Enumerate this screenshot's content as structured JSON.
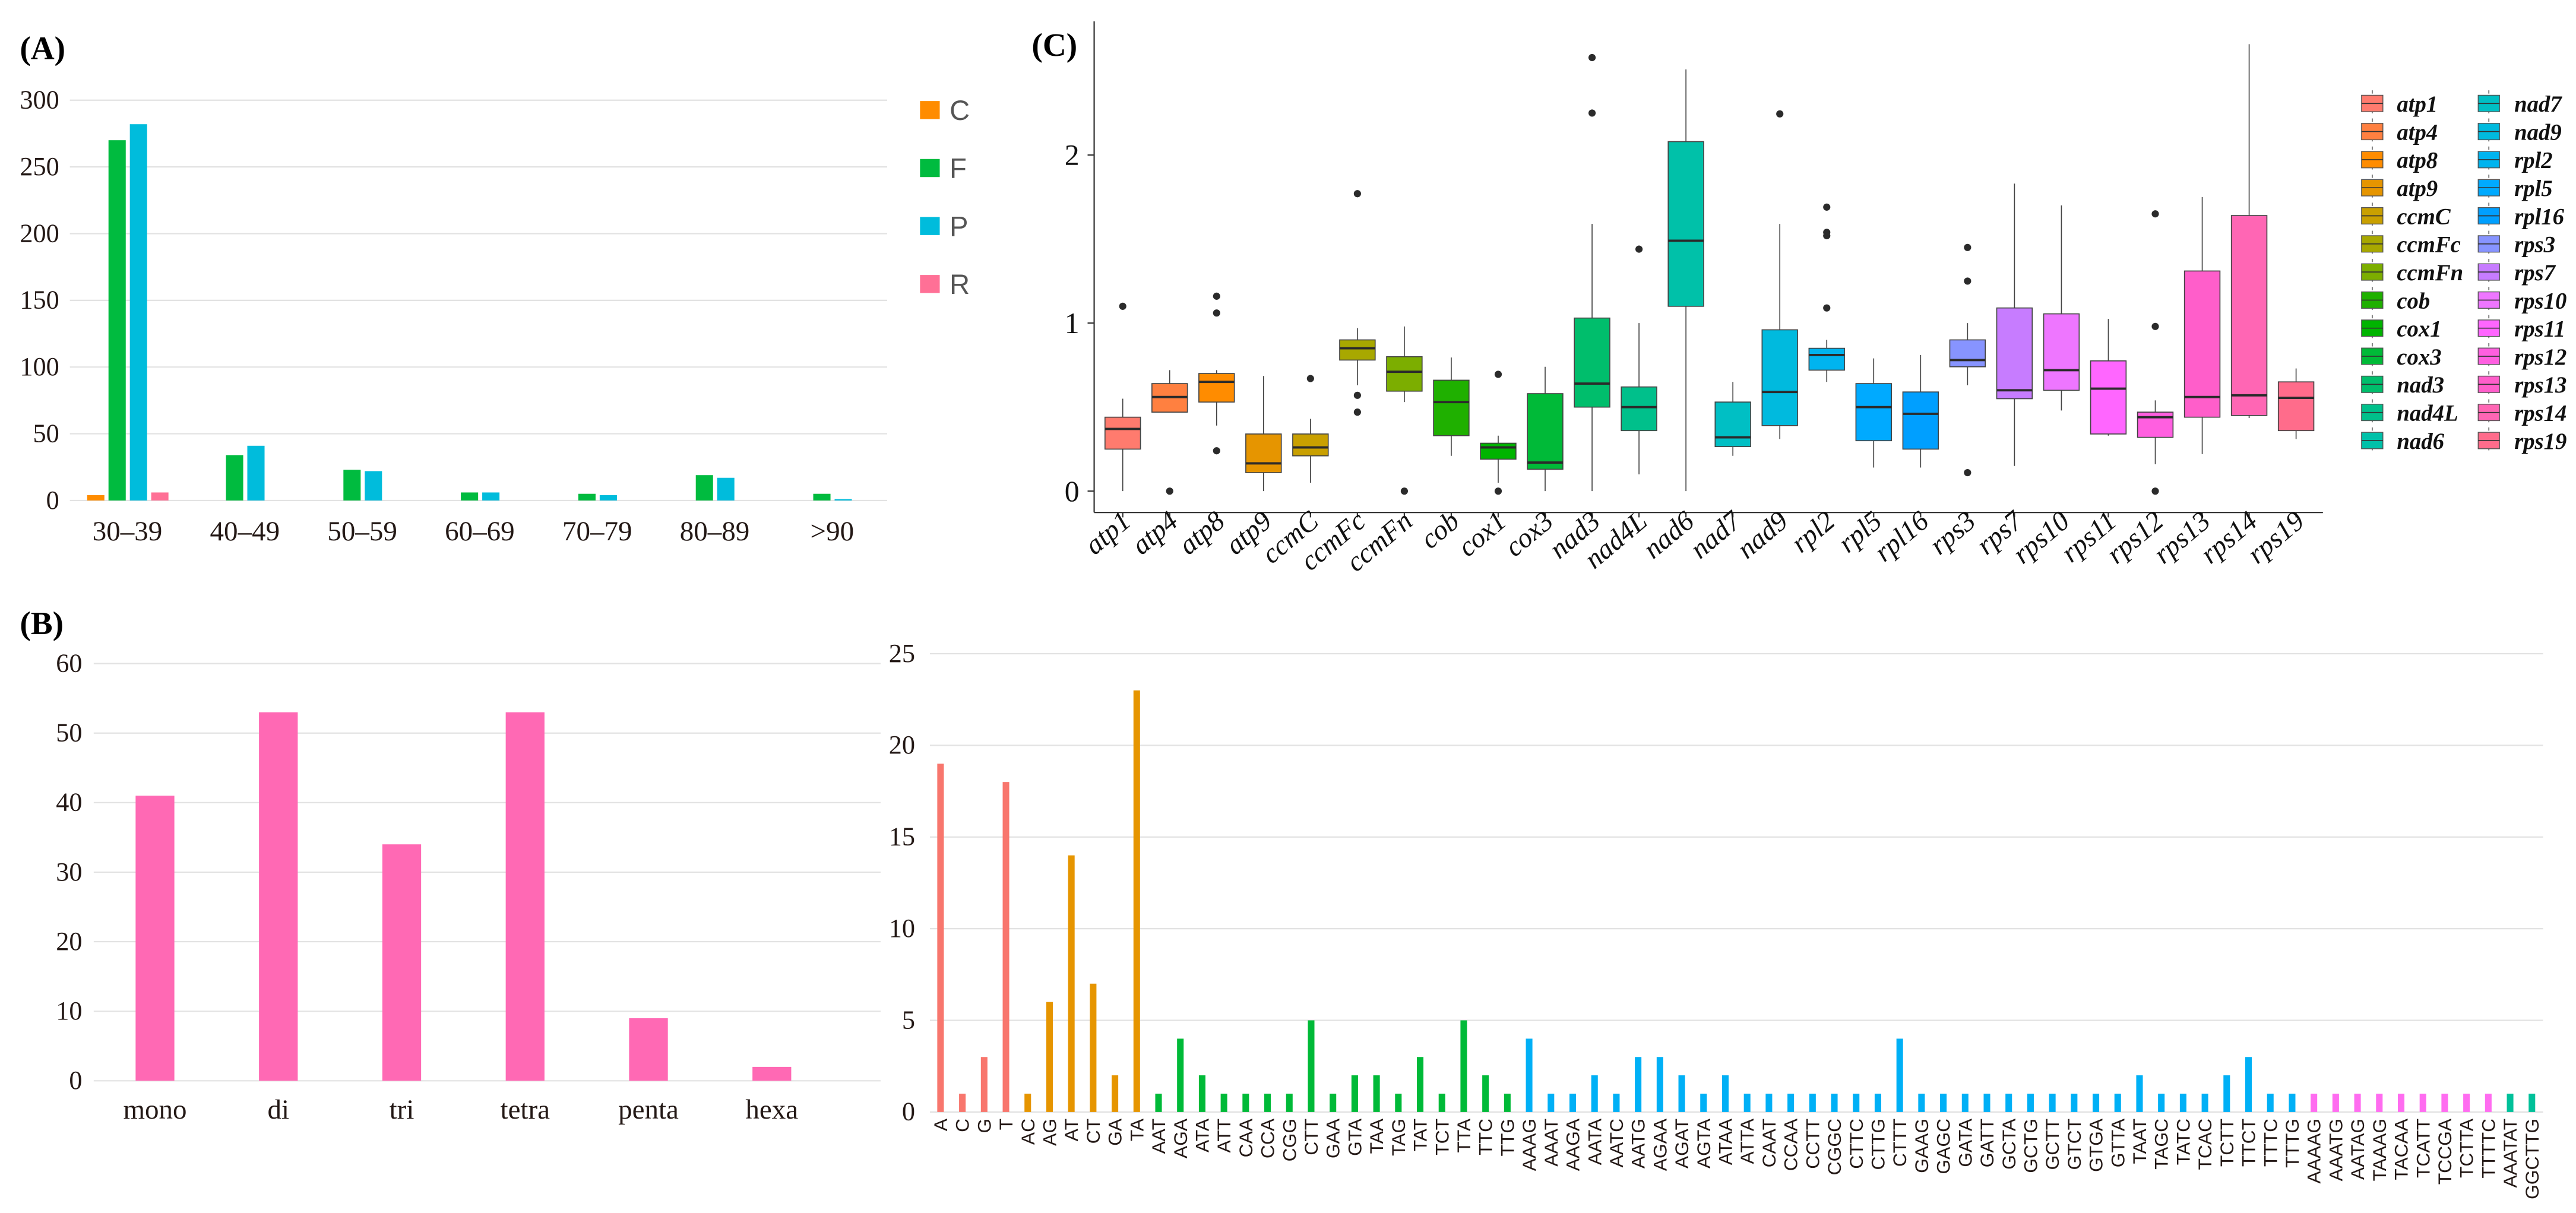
{
  "chart_data": [
    {
      "panel": "(A)",
      "type": "bar",
      "categories": [
        "30–39",
        "40–49",
        "50–59",
        "60–69",
        "70–79",
        "80–89",
        ">90"
      ],
      "series": [
        {
          "name": "C",
          "color": "#FF8C00",
          "values": [
            4,
            0,
            0,
            0,
            0,
            0,
            0
          ]
        },
        {
          "name": "F",
          "color": "#00BB3F",
          "values": [
            270,
            34,
            23,
            6,
            5,
            19,
            5
          ]
        },
        {
          "name": "P",
          "color": "#00BCDC",
          "values": [
            282,
            41,
            22,
            6,
            4,
            17,
            1
          ]
        },
        {
          "name": "R",
          "color": "#FF7096",
          "values": [
            6,
            0,
            0,
            0,
            0,
            0,
            0
          ]
        }
      ],
      "yticks": [
        "0",
        "50",
        "100",
        "150",
        "200",
        "250",
        "300"
      ],
      "ylim": [
        0,
        300
      ],
      "grid": true,
      "legend_placement": "right"
    },
    {
      "panel": "(B)",
      "type": "bar",
      "categories": [
        "mono",
        "di",
        "tri",
        "tetra",
        "penta",
        "hexa"
      ],
      "values": [
        41,
        53,
        34,
        53,
        9,
        2
      ],
      "color": "#FF69B4",
      "yticks": [
        "0",
        "10",
        "20",
        "30",
        "40",
        "50",
        "60"
      ],
      "ylim": [
        0,
        60
      ],
      "grid": true
    },
    {
      "panel": "(C)",
      "type": "boxplot",
      "yticks": [
        "0",
        "1",
        "2"
      ],
      "ylim": [
        -0.13,
        2.8
      ],
      "legend_placement": "right",
      "boxes": [
        {
          "name": "atp1",
          "color": "#FF7B6E",
          "q1": 0.25,
          "median": 0.37,
          "q3": 0.44,
          "lo": 0.0,
          "hi": 0.55,
          "outliers": [
            1.1
          ]
        },
        {
          "name": "atp4",
          "color": "#FF8040",
          "q1": 0.47,
          "median": 0.56,
          "q3": 0.64,
          "lo": 0.47,
          "hi": 0.72,
          "outliers": [
            0.0
          ]
        },
        {
          "name": "atp8",
          "color": "#FF8C00",
          "q1": 0.53,
          "median": 0.65,
          "q3": 0.7,
          "lo": 0.39,
          "hi": 0.72,
          "outliers": [
            1.16,
            1.06,
            0.24
          ]
        },
        {
          "name": "atp9",
          "color": "#E69500",
          "q1": 0.11,
          "median": 0.165,
          "q3": 0.34,
          "lo": 0.0,
          "hi": 0.685,
          "outliers": []
        },
        {
          "name": "ccmC",
          "color": "#C9A000",
          "q1": 0.21,
          "median": 0.26,
          "q3": 0.34,
          "lo": 0.05,
          "hi": 0.43,
          "outliers": [
            0.67
          ]
        },
        {
          "name": "ccmFc",
          "color": "#A8A800",
          "q1": 0.78,
          "median": 0.85,
          "q3": 0.9,
          "lo": 0.63,
          "hi": 0.97,
          "outliers": [
            1.77,
            0.57,
            0.47
          ]
        },
        {
          "name": "ccmFn",
          "color": "#7CAE00",
          "q1": 0.595,
          "median": 0.71,
          "q3": 0.8,
          "lo": 0.53,
          "hi": 0.98,
          "outliers": [
            0.0
          ]
        },
        {
          "name": "cob",
          "color": "#1FB000",
          "q1": 0.33,
          "median": 0.53,
          "q3": 0.66,
          "lo": 0.21,
          "hi": 0.795,
          "outliers": []
        },
        {
          "name": "cox1",
          "color": "#00B400",
          "q1": 0.19,
          "median": 0.26,
          "q3": 0.285,
          "lo": 0.05,
          "hi": 0.33,
          "outliers": [
            0.695,
            0.0
          ]
        },
        {
          "name": "cox3",
          "color": "#00BA38",
          "q1": 0.13,
          "median": 0.17,
          "q3": 0.58,
          "lo": 0.0,
          "hi": 0.74,
          "outliers": []
        },
        {
          "name": "nad3",
          "color": "#00BE6C",
          "q1": 0.5,
          "median": 0.64,
          "q3": 1.03,
          "lo": 0.0,
          "hi": 1.59,
          "outliers": [
            2.58,
            2.25
          ]
        },
        {
          "name": "nad4L",
          "color": "#00C08B",
          "q1": 0.36,
          "median": 0.5,
          "q3": 0.62,
          "lo": 0.1,
          "hi": 1.0,
          "outliers": [
            1.44
          ]
        },
        {
          "name": "nad6",
          "color": "#00C1A9",
          "q1": 1.1,
          "median": 1.49,
          "q3": 2.08,
          "lo": 0.0,
          "hi": 2.51,
          "outliers": []
        },
        {
          "name": "nad7",
          "color": "#00BFC4",
          "q1": 0.265,
          "median": 0.32,
          "q3": 0.53,
          "lo": 0.21,
          "hi": 0.65,
          "outliers": []
        },
        {
          "name": "nad9",
          "color": "#00BADE",
          "q1": 0.39,
          "median": 0.59,
          "q3": 0.96,
          "lo": 0.31,
          "hi": 1.59,
          "outliers": [
            2.245
          ]
        },
        {
          "name": "rpl2",
          "color": "#00B4EF",
          "q1": 0.72,
          "median": 0.81,
          "q3": 0.85,
          "lo": 0.65,
          "hi": 0.9,
          "outliers": [
            1.69,
            1.54,
            1.52,
            1.09
          ]
        },
        {
          "name": "rpl5",
          "color": "#00AAFF",
          "q1": 0.3,
          "median": 0.5,
          "q3": 0.64,
          "lo": 0.14,
          "hi": 0.79,
          "outliers": []
        },
        {
          "name": "rpl16",
          "color": "#009FFF",
          "q1": 0.25,
          "median": 0.46,
          "q3": 0.59,
          "lo": 0.14,
          "hi": 0.81,
          "outliers": []
        },
        {
          "name": "rps3",
          "color": "#8794FF",
          "q1": 0.74,
          "median": 0.78,
          "q3": 0.9,
          "lo": 0.63,
          "hi": 1.0,
          "outliers": [
            1.45,
            1.25,
            0.11
          ]
        },
        {
          "name": "rps7",
          "color": "#C77CFF",
          "q1": 0.55,
          "median": 0.6,
          "q3": 1.09,
          "lo": 0.15,
          "hi": 1.83,
          "outliers": []
        },
        {
          "name": "rps10",
          "color": "#EE76FF",
          "q1": 0.6,
          "median": 0.72,
          "q3": 1.055,
          "lo": 0.48,
          "hi": 1.7,
          "outliers": []
        },
        {
          "name": "rps11",
          "color": "#FF66FF",
          "q1": 0.34,
          "median": 0.61,
          "q3": 0.775,
          "lo": 0.33,
          "hi": 1.025,
          "outliers": []
        },
        {
          "name": "rps12",
          "color": "#FF5FE0",
          "q1": 0.32,
          "median": 0.44,
          "q3": 0.47,
          "lo": 0.16,
          "hi": 0.54,
          "outliers": [
            1.65,
            0.98,
            0.0
          ]
        },
        {
          "name": "rps13",
          "color": "#FF5ECA",
          "q1": 0.44,
          "median": 0.56,
          "q3": 1.31,
          "lo": 0.22,
          "hi": 1.75,
          "outliers": []
        },
        {
          "name": "rps14",
          "color": "#FF66B4",
          "q1": 0.45,
          "median": 0.57,
          "q3": 1.64,
          "lo": 0.435,
          "hi": 2.66,
          "outliers": []
        },
        {
          "name": "rps19",
          "color": "#FF6C8B",
          "q1": 0.36,
          "median": 0.555,
          "q3": 0.65,
          "lo": 0.31,
          "hi": 0.73,
          "outliers": []
        }
      ]
    },
    {
      "panel": "",
      "type": "bar",
      "yticks": [
        "0",
        "5",
        "10",
        "15",
        "20",
        "25"
      ],
      "ylim": [
        0,
        25
      ],
      "grid": true,
      "groups": [
        {
          "name": "mono",
          "color": "#F8766D",
          "items": [
            [
              "A",
              19
            ],
            [
              "C",
              1
            ],
            [
              "G",
              3
            ],
            [
              "T",
              18
            ]
          ]
        },
        {
          "name": "di",
          "color": "#E69500",
          "items": [
            [
              "AC",
              1
            ],
            [
              "AG",
              6
            ],
            [
              "AT",
              14
            ],
            [
              "CT",
              7
            ],
            [
              "GA",
              2
            ],
            [
              "TA",
              23
            ]
          ]
        },
        {
          "name": "tri",
          "color": "#00BA38",
          "items": [
            [
              "AAT",
              1
            ],
            [
              "AGA",
              4
            ],
            [
              "ATA",
              2
            ],
            [
              "ATT",
              1
            ],
            [
              "CAA",
              1
            ],
            [
              "CCA",
              1
            ],
            [
              "CGG",
              1
            ],
            [
              "CTT",
              5
            ],
            [
              "GAA",
              1
            ],
            [
              "GTA",
              2
            ],
            [
              "TAA",
              2
            ],
            [
              "TAG",
              1
            ],
            [
              "TAT",
              3
            ],
            [
              "TCT",
              1
            ],
            [
              "TTA",
              5
            ],
            [
              "TTC",
              2
            ],
            [
              "TTG",
              1
            ]
          ]
        },
        {
          "name": "tetra",
          "color": "#00B0F6",
          "items": [
            [
              "AAAG",
              4
            ],
            [
              "AAAT",
              1
            ],
            [
              "AAGA",
              1
            ],
            [
              "AATA",
              2
            ],
            [
              "AATC",
              1
            ],
            [
              "AATG",
              3
            ],
            [
              "AGAA",
              3
            ],
            [
              "AGAT",
              2
            ],
            [
              "AGTA",
              1
            ],
            [
              "ATAA",
              2
            ],
            [
              "ATTA",
              1
            ],
            [
              "CAAT",
              1
            ],
            [
              "CCAA",
              1
            ],
            [
              "CCTT",
              1
            ],
            [
              "CGGC",
              1
            ],
            [
              "CTTC",
              1
            ],
            [
              "CTTG",
              1
            ],
            [
              "CTTT",
              4
            ],
            [
              "GAAG",
              1
            ],
            [
              "GAGC",
              1
            ],
            [
              "GATA",
              1
            ],
            [
              "GATT",
              1
            ],
            [
              "GCTA",
              1
            ],
            [
              "GCTG",
              1
            ],
            [
              "GCTT",
              1
            ],
            [
              "GTCT",
              1
            ],
            [
              "GTGA",
              1
            ],
            [
              "GTTA",
              1
            ],
            [
              "TAAT",
              2
            ],
            [
              "TAGC",
              1
            ],
            [
              "TATC",
              1
            ],
            [
              "TCAC",
              1
            ],
            [
              "TCTT",
              2
            ],
            [
              "TTCT",
              3
            ],
            [
              "TTTC",
              1
            ],
            [
              "TTTG",
              1
            ]
          ]
        },
        {
          "name": "penta",
          "color": "#FF6CF0",
          "items": [
            [
              "AAAAG",
              1
            ],
            [
              "AAATG",
              1
            ],
            [
              "AATAG",
              1
            ],
            [
              "TAAAG",
              1
            ],
            [
              "TACAA",
              1
            ],
            [
              "TCATT",
              1
            ],
            [
              "TCCGA",
              1
            ],
            [
              "TCTTA",
              1
            ],
            [
              "TTTTC",
              1
            ]
          ]
        },
        {
          "name": "hexa",
          "color": "#00C19A",
          "items": [
            [
              "AAATAT",
              1
            ],
            [
              "GGCTTG",
              1
            ]
          ]
        }
      ]
    }
  ]
}
